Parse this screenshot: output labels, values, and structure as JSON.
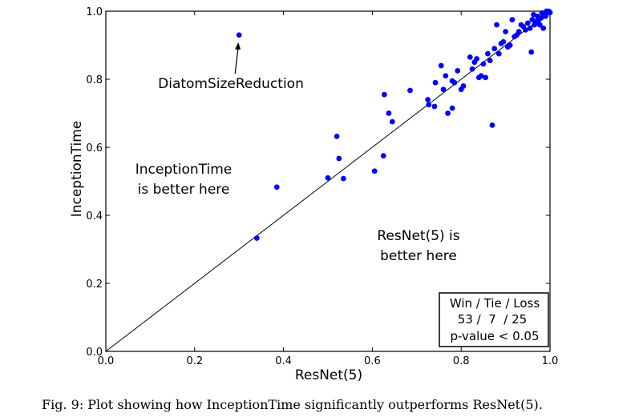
{
  "chart_data": {
    "type": "scatter",
    "title": "",
    "xlabel": "ResNet(5)",
    "ylabel": "InceptionTime",
    "xlim": [
      0.0,
      1.0
    ],
    "ylim": [
      0.0,
      1.0
    ],
    "xticks": [
      "0.0",
      "0.2",
      "0.4",
      "0.6",
      "0.8",
      "1.0"
    ],
    "yticks": [
      "0.0",
      "0.2",
      "0.4",
      "0.6",
      "0.8",
      "1.0"
    ],
    "grid": false,
    "marker_color": "#0000ff",
    "diagonal": true,
    "points": [
      {
        "x": 0.34,
        "y": 0.333
      },
      {
        "x": 0.385,
        "y": 0.483
      },
      {
        "x": 0.5,
        "y": 0.51
      },
      {
        "x": 0.52,
        "y": 0.632
      },
      {
        "x": 0.525,
        "y": 0.567
      },
      {
        "x": 0.535,
        "y": 0.508
      },
      {
        "x": 0.605,
        "y": 0.53
      },
      {
        "x": 0.625,
        "y": 0.575
      },
      {
        "x": 0.627,
        "y": 0.755
      },
      {
        "x": 0.637,
        "y": 0.7
      },
      {
        "x": 0.645,
        "y": 0.675
      },
      {
        "x": 0.685,
        "y": 0.767
      },
      {
        "x": 0.725,
        "y": 0.74
      },
      {
        "x": 0.727,
        "y": 0.725
      },
      {
        "x": 0.74,
        "y": 0.72
      },
      {
        "x": 0.742,
        "y": 0.79
      },
      {
        "x": 0.755,
        "y": 0.84
      },
      {
        "x": 0.76,
        "y": 0.77
      },
      {
        "x": 0.765,
        "y": 0.81
      },
      {
        "x": 0.77,
        "y": 0.7
      },
      {
        "x": 0.78,
        "y": 0.795
      },
      {
        "x": 0.785,
        "y": 0.79
      },
      {
        "x": 0.78,
        "y": 0.715
      },
      {
        "x": 0.792,
        "y": 0.825
      },
      {
        "x": 0.8,
        "y": 0.77
      },
      {
        "x": 0.805,
        "y": 0.78
      },
      {
        "x": 0.82,
        "y": 0.865
      },
      {
        "x": 0.825,
        "y": 0.83
      },
      {
        "x": 0.83,
        "y": 0.85
      },
      {
        "x": 0.835,
        "y": 0.86
      },
      {
        "x": 0.84,
        "y": 0.805
      },
      {
        "x": 0.845,
        "y": 0.81
      },
      {
        "x": 0.85,
        "y": 0.845
      },
      {
        "x": 0.855,
        "y": 0.805
      },
      {
        "x": 0.86,
        "y": 0.875
      },
      {
        "x": 0.865,
        "y": 0.855
      },
      {
        "x": 0.87,
        "y": 0.665
      },
      {
        "x": 0.875,
        "y": 0.89
      },
      {
        "x": 0.88,
        "y": 0.96
      },
      {
        "x": 0.885,
        "y": 0.875
      },
      {
        "x": 0.89,
        "y": 0.905
      },
      {
        "x": 0.895,
        "y": 0.91
      },
      {
        "x": 0.9,
        "y": 0.94
      },
      {
        "x": 0.905,
        "y": 0.895
      },
      {
        "x": 0.91,
        "y": 0.9
      },
      {
        "x": 0.915,
        "y": 0.975
      },
      {
        "x": 0.92,
        "y": 0.925
      },
      {
        "x": 0.925,
        "y": 0.93
      },
      {
        "x": 0.93,
        "y": 0.94
      },
      {
        "x": 0.935,
        "y": 0.96
      },
      {
        "x": 0.94,
        "y": 0.955
      },
      {
        "x": 0.945,
        "y": 0.945
      },
      {
        "x": 0.95,
        "y": 0.965
      },
      {
        "x": 0.955,
        "y": 0.95
      },
      {
        "x": 0.958,
        "y": 0.88
      },
      {
        "x": 0.96,
        "y": 0.975
      },
      {
        "x": 0.963,
        "y": 0.99
      },
      {
        "x": 0.965,
        "y": 0.96
      },
      {
        "x": 0.968,
        "y": 0.97
      },
      {
        "x": 0.97,
        "y": 0.965
      },
      {
        "x": 0.972,
        "y": 0.985
      },
      {
        "x": 0.975,
        "y": 0.975
      },
      {
        "x": 0.977,
        "y": 0.96
      },
      {
        "x": 0.98,
        "y": 0.98
      },
      {
        "x": 0.982,
        "y": 0.995
      },
      {
        "x": 0.985,
        "y": 0.95
      },
      {
        "x": 0.988,
        "y": 0.99
      },
      {
        "x": 0.99,
        "y": 0.985
      },
      {
        "x": 0.992,
        "y": 1.0
      },
      {
        "x": 0.995,
        "y": 0.995
      },
      {
        "x": 0.997,
        "y": 1.0
      },
      {
        "x": 0.999,
        "y": 0.998
      },
      {
        "x": 1.0,
        "y": 0.996
      },
      {
        "x": 0.3,
        "y": 0.93
      }
    ],
    "annotations": [
      {
        "text": "DiatomSizeReduction",
        "x": 0.3,
        "y": 0.93,
        "arrow": true
      },
      {
        "text": "InceptionTime",
        "region": "upper-left"
      },
      {
        "text": "is better here",
        "region": "upper-left"
      },
      {
        "text": "ResNet(5) is",
        "region": "lower-right"
      },
      {
        "text": "better here",
        "region": "lower-right"
      }
    ],
    "stats_box": {
      "placement": "bottom-right",
      "header": "Win / Tie / Loss",
      "counts": "53 /  7  / 25",
      "pvalue": "p-value < 0.05"
    }
  },
  "caption": "Fig. 9: Plot showing how InceptionTime significantly outperforms ResNet(5)."
}
